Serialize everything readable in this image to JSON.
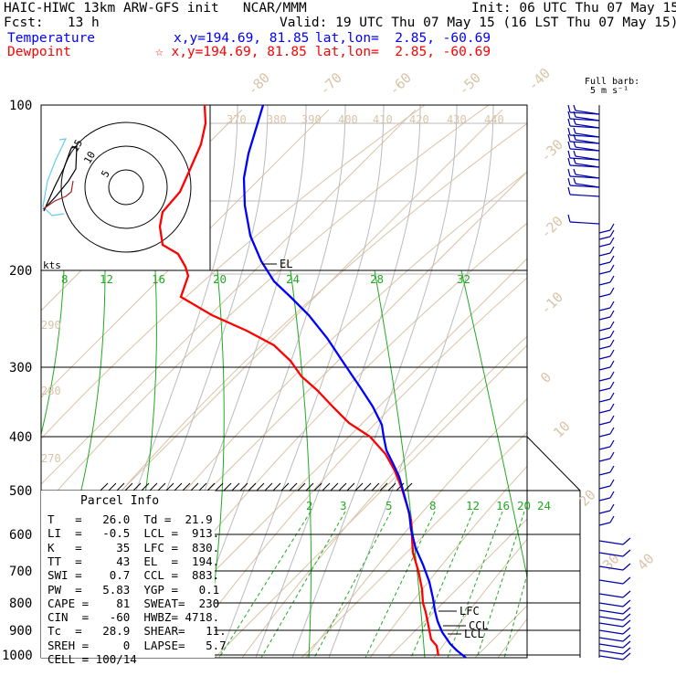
{
  "header": {
    "title": "HAIC-HIWC 13km ARW-GFS init   NCAR/MMM",
    "init": "Init: 06 UTC Thu 07 May 15",
    "fcst": "Fcst:   13 h",
    "valid": "Valid: 19 UTC Thu 07 May 15 (16 LST Thu 07 May 15)",
    "temperature_label": "Temperature",
    "dewpoint_label": "Dewpoint",
    "temp_xy": "x,y=194.69, 81.85",
    "temp_latlon": "lat,lon=  2.85, -60.69",
    "dew_xy": "☆ x,y=194.69, 81.85",
    "dew_latlon": "lat,lon=  2.85, -60.69"
  },
  "barb_key": {
    "line1": "Full barb:",
    "line2": "5 m s⁻¹"
  },
  "hodograph": {
    "unit": "kts",
    "rings": [
      "5",
      "10",
      "15"
    ]
  },
  "parcel_info": {
    "title": "Parcel Info",
    "rows": [
      "T   =   26.0  Td =  21.9",
      "LI  =   -0.5  LCL =  913.",
      "K   =     35  LFC =  830.",
      "TT  =     43  EL  =  194.",
      "SWI =    0.7  CCL =  883.",
      "PW  =   5.83  YGP =   0.1",
      "CAPE =    81  SWEAT=  230",
      "CIN  =   -60  HWBZ= 4718.",
      "Tc  =   28.9  SHEAR=   11.",
      "SREH =     0  LAPSE=   5.7",
      "CELL = 100/14"
    ]
  },
  "chart_data": {
    "type": "skew-t",
    "pressure_levels_hPa": [
      "100",
      "200",
      "300",
      "400",
      "500",
      "600",
      "700",
      "800",
      "900",
      "1000"
    ],
    "isotherm_labels_C": [
      "-80",
      "-70",
      "-60",
      "-50",
      "-40",
      "-30",
      "-20",
      "-10",
      "0",
      "10",
      "20",
      "30",
      "40"
    ],
    "theta_e_labels_K": [
      "370",
      "380",
      "390",
      "400",
      "410",
      "420",
      "430",
      "440",
      "290",
      "280",
      "270"
    ],
    "mixing_ratio_labels_upper": [
      "8",
      "12",
      "16",
      "20",
      "24",
      "28",
      "32"
    ],
    "mixing_ratio_labels_lower": [
      "2",
      "3",
      "5",
      "8",
      "12",
      "16",
      "20",
      "24"
    ],
    "level_markers": [
      "EL",
      "LFC",
      "CCL",
      "LCL"
    ],
    "series": [
      {
        "name": "Temperature",
        "color": "#0000ff"
      },
      {
        "name": "Dewpoint",
        "color": "#ff0000"
      }
    ]
  }
}
